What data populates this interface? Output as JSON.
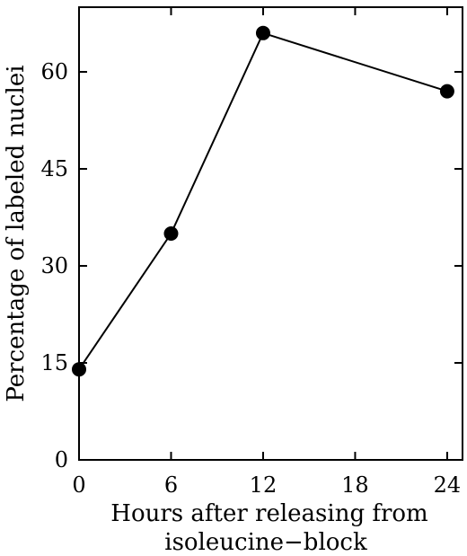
{
  "chart_data": {
    "type": "line",
    "title": "",
    "xlabel_lines": [
      "Hours after releasing from",
      "isoleucine−block"
    ],
    "ylabel": "Percentage of labeled nuclei",
    "x": [
      0,
      6,
      12,
      24
    ],
    "series": [
      {
        "values": [
          14,
          35,
          66,
          57
        ]
      }
    ],
    "xlim": [
      0,
      25
    ],
    "ylim": [
      0,
      70
    ],
    "xticks": [
      0,
      6,
      12,
      18,
      24
    ],
    "yticks": [
      0,
      15,
      30,
      45,
      60
    ],
    "grid": false,
    "legend": "none",
    "colors": {
      "line": "#000000",
      "marker": "#000000",
      "axis": "#000000"
    }
  }
}
